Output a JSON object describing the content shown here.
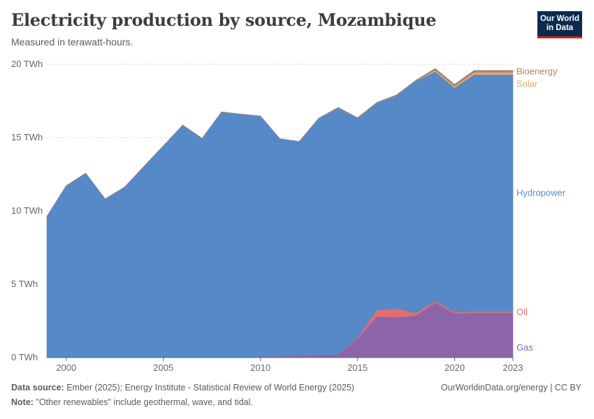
{
  "header": {
    "title": "Electricity production by source, Mozambique",
    "subtitle": "Measured in terawatt-hours.",
    "logo_line1": "Our World",
    "logo_line2": "in Data"
  },
  "footer": {
    "source_label": "Data source:",
    "source_text": " Ember (2025); Energy Institute - Statistical Review of World Energy (2025)",
    "note_label": "Note:",
    "note_text": " \"Other renewables\" include geothermal, wave, and tidal.",
    "credit": "OurWorldinData.org/energy | CC BY"
  },
  "colors": {
    "gas": "#8c64a8",
    "oil": "#dd6e73",
    "hydropower": "#5689c8",
    "solar": "#e8a86a",
    "bioenergy": "#b5855a",
    "gridline": "#dddddd",
    "axis": "#666666"
  },
  "chart_data": {
    "type": "area",
    "stacked": true,
    "x": [
      1999,
      2000,
      2001,
      2002,
      2003,
      2004,
      2005,
      2006,
      2007,
      2008,
      2009,
      2010,
      2011,
      2012,
      2013,
      2014,
      2015,
      2016,
      2017,
      2018,
      2019,
      2020,
      2021,
      2022,
      2023
    ],
    "x_ticks": [
      "2000",
      "2005",
      "2010",
      "2015",
      "2020",
      "2023"
    ],
    "x_tick_values": [
      2000,
      2005,
      2010,
      2015,
      2020,
      2023
    ],
    "y_ticks": [
      "0 TWh",
      "5 TWh",
      "10 TWh",
      "15 TWh",
      "20 TWh"
    ],
    "y_tick_values": [
      0,
      5,
      10,
      15,
      20
    ],
    "xlim": [
      1999,
      2023
    ],
    "ylim": [
      0,
      20
    ],
    "series": [
      {
        "name": "Gas",
        "color": "#8c64a8",
        "values": [
          0,
          0,
          0,
          0,
          0,
          0.02,
          0.02,
          0.03,
          0.03,
          0.03,
          0.03,
          0.05,
          0.1,
          0.12,
          0.2,
          0.2,
          1.3,
          2.8,
          2.75,
          2.85,
          3.75,
          3.0,
          3.05,
          3.05,
          3.05
        ]
      },
      {
        "name": "Oil",
        "color": "#dd6e73",
        "values": [
          0,
          0,
          0,
          0,
          0,
          0,
          0,
          0,
          0,
          0,
          0,
          0,
          0,
          0,
          0,
          0,
          0.05,
          0.45,
          0.6,
          0.2,
          0.1,
          0.1,
          0.1,
          0.1,
          0.1
        ]
      },
      {
        "name": "Hydropower",
        "color": "#5689c8",
        "values": [
          9.6,
          11.7,
          12.55,
          10.8,
          11.6,
          13,
          14.4,
          15.8,
          14.9,
          16.7,
          16.55,
          16.4,
          14.8,
          14.6,
          16.1,
          16.8,
          14.95,
          14.1,
          14.5,
          15.8,
          15.65,
          15.3,
          16.15,
          16.15,
          16.15
        ]
      },
      {
        "name": "Solar",
        "color": "#e8a86a",
        "values": [
          0,
          0,
          0,
          0,
          0,
          0,
          0,
          0,
          0,
          0,
          0,
          0,
          0,
          0,
          0,
          0,
          0,
          0,
          0,
          0,
          0.1,
          0.1,
          0.15,
          0.15,
          0.15
        ]
      },
      {
        "name": "Bioenergy",
        "color": "#b5855a",
        "values": [
          0.02,
          0.02,
          0.02,
          0.02,
          0.02,
          0.02,
          0.02,
          0.02,
          0.02,
          0.02,
          0.02,
          0.02,
          0.02,
          0.02,
          0.02,
          0.05,
          0.05,
          0.05,
          0.05,
          0.05,
          0.1,
          0.12,
          0.12,
          0.12,
          0.12
        ]
      }
    ],
    "label_order": [
      "Bioenergy",
      "Solar",
      "Hydropower",
      "Oil",
      "Gas"
    ],
    "grid": "horizontal-dashed",
    "legend": "right-inline"
  }
}
